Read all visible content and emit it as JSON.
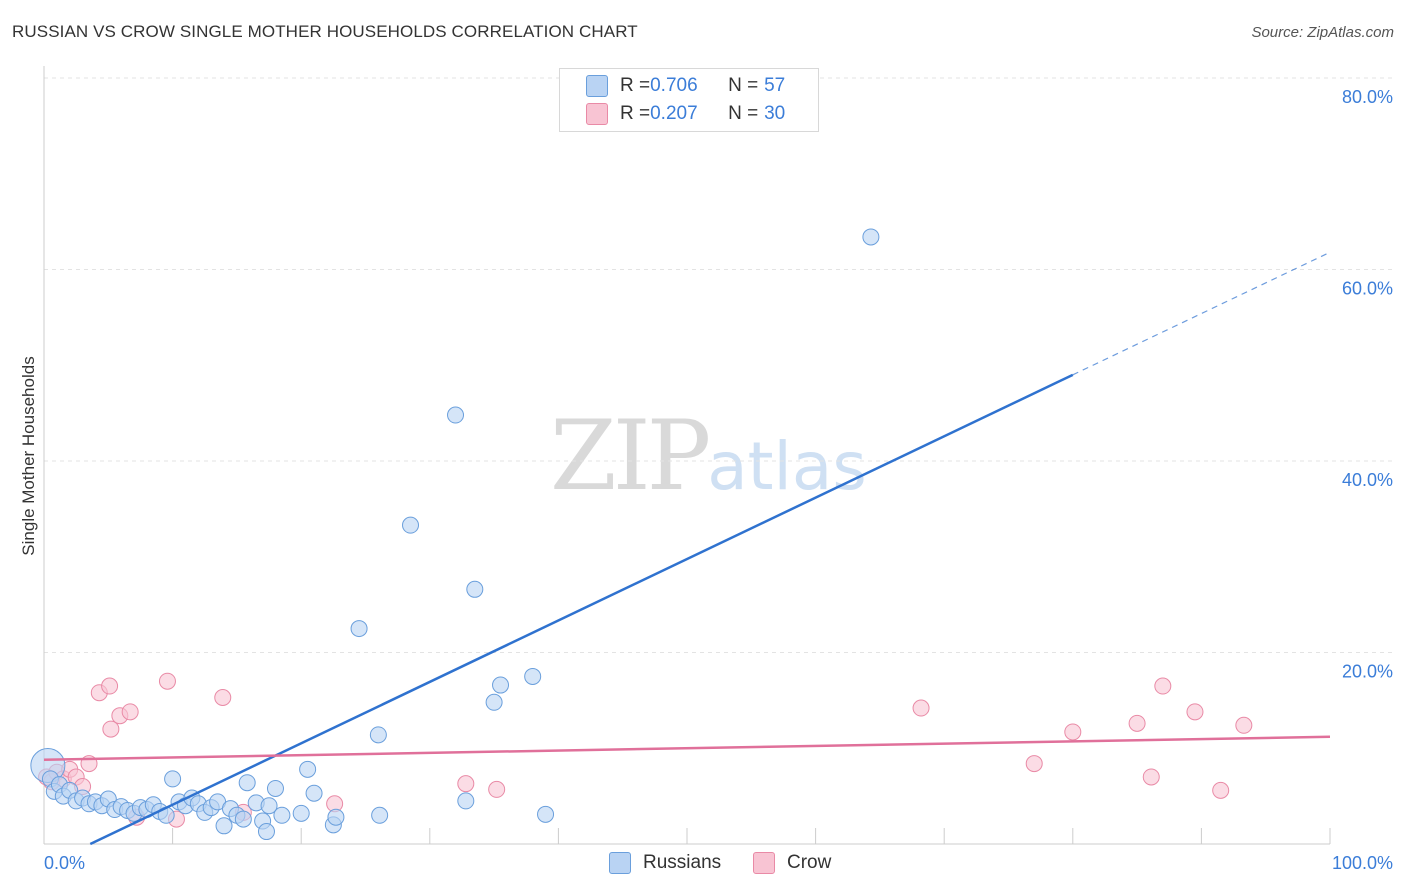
{
  "title": "RUSSIAN VS CROW SINGLE MOTHER HOUSEHOLDS CORRELATION CHART",
  "source": "Source: ZipAtlas.com",
  "watermark": {
    "zip": "ZIP",
    "atlas": "atlas"
  },
  "colors": {
    "russians_fill": "#b9d3f3",
    "russians_stroke": "#6a9fdc",
    "russians_line": "#2f72cf",
    "crow_fill": "#f8c4d3",
    "crow_stroke": "#e98aa6",
    "crow_line": "#e0709a",
    "axis_label": "#3b7dd8",
    "grid": "#e3e3e3"
  },
  "legend": {
    "russians": {
      "r_label": "R = ",
      "r_value": "0.706",
      "n_label": "N = ",
      "n_value": "57"
    },
    "crow": {
      "r_label": "R = ",
      "r_value": "0.207",
      "n_label": "N = ",
      "n_value": "30"
    }
  },
  "bottom_legend": {
    "russians": "Russians",
    "crow": "Crow"
  },
  "chart_data": {
    "type": "scatter",
    "title": "RUSSIAN VS CROW SINGLE MOTHER HOUSEHOLDS CORRELATION CHART",
    "xlabel": "",
    "ylabel": "Single Mother Households",
    "xlim": [
      0,
      100
    ],
    "ylim": [
      0,
      80
    ],
    "x_tick_labels": [
      "0.0%",
      "100.0%"
    ],
    "y_ticks": [
      20,
      40,
      60,
      80
    ],
    "y_tick_labels": [
      "20.0%",
      "40.0%",
      "60.0%",
      "80.0%"
    ],
    "grid": true,
    "series": [
      {
        "name": "Russians",
        "points": [
          [
            0.3,
            8.2,
            2
          ],
          [
            0.5,
            6.8,
            1
          ],
          [
            0.8,
            5.5,
            1
          ],
          [
            1.2,
            6.2,
            1
          ],
          [
            1.5,
            5.0,
            1
          ],
          [
            2.0,
            5.6,
            1
          ],
          [
            2.5,
            4.5,
            1
          ],
          [
            3.0,
            4.8,
            1
          ],
          [
            3.5,
            4.2,
            1
          ],
          [
            4.0,
            4.4,
            1
          ],
          [
            4.5,
            4.0,
            1
          ],
          [
            5.0,
            4.7,
            1
          ],
          [
            5.5,
            3.6,
            1
          ],
          [
            6.0,
            3.9,
            1
          ],
          [
            6.5,
            3.5,
            1
          ],
          [
            7.0,
            3.2,
            1
          ],
          [
            7.5,
            3.8,
            1
          ],
          [
            8.0,
            3.6,
            1
          ],
          [
            8.5,
            4.1,
            1
          ],
          [
            9.0,
            3.4,
            1
          ],
          [
            9.5,
            3.0,
            1
          ],
          [
            10.0,
            6.8,
            1
          ],
          [
            10.5,
            4.4,
            1
          ],
          [
            11.0,
            4.0,
            1
          ],
          [
            11.5,
            4.8,
            1
          ],
          [
            12.0,
            4.2,
            1
          ],
          [
            12.5,
            3.3,
            1
          ],
          [
            13.0,
            3.8,
            1
          ],
          [
            13.5,
            4.4,
            1
          ],
          [
            14.0,
            1.9,
            1
          ],
          [
            14.5,
            3.7,
            1
          ],
          [
            15.0,
            3.0,
            1
          ],
          [
            15.5,
            2.6,
            1
          ],
          [
            15.8,
            6.4,
            1
          ],
          [
            16.5,
            4.3,
            1
          ],
          [
            17.0,
            2.4,
            1
          ],
          [
            17.5,
            4.0,
            1
          ],
          [
            18.0,
            5.8,
            1
          ],
          [
            18.5,
            3.0,
            1
          ],
          [
            17.3,
            1.3,
            1
          ],
          [
            20.0,
            3.2,
            1
          ],
          [
            20.5,
            7.8,
            1
          ],
          [
            21.0,
            5.3,
            1
          ],
          [
            22.5,
            2.0,
            1
          ],
          [
            22.7,
            2.8,
            1
          ],
          [
            24.5,
            22.5,
            1
          ],
          [
            26.0,
            11.4,
            1
          ],
          [
            26.1,
            3.0,
            1
          ],
          [
            28.5,
            33.3,
            1
          ],
          [
            32.0,
            44.8,
            1
          ],
          [
            33.5,
            26.6,
            1
          ],
          [
            35.0,
            14.8,
            1
          ],
          [
            35.5,
            16.6,
            1
          ],
          [
            38.0,
            17.5,
            1
          ],
          [
            39.0,
            3.1,
            1
          ],
          [
            64.3,
            63.4,
            1
          ],
          [
            32.8,
            4.5,
            1
          ]
        ],
        "trendline": {
          "x": [
            3.6,
            80.0
          ],
          "y": [
            0.0,
            49.0
          ],
          "dashed_to": [
            100.0,
            61.8
          ]
        }
      },
      {
        "name": "Crow",
        "points": [
          [
            0.2,
            7.0,
            1
          ],
          [
            0.6,
            6.5,
            1
          ],
          [
            1.0,
            7.5,
            1
          ],
          [
            1.5,
            6.8,
            1
          ],
          [
            2.0,
            7.8,
            1
          ],
          [
            2.5,
            7.0,
            1
          ],
          [
            3.0,
            6.0,
            1
          ],
          [
            3.5,
            8.4,
            1
          ],
          [
            4.3,
            15.8,
            1
          ],
          [
            5.1,
            16.5,
            1
          ],
          [
            5.2,
            12.0,
            1
          ],
          [
            5.9,
            13.4,
            1
          ],
          [
            6.7,
            13.8,
            1
          ],
          [
            7.2,
            2.8,
            1
          ],
          [
            9.6,
            17.0,
            1
          ],
          [
            10.3,
            2.6,
            1
          ],
          [
            13.9,
            15.3,
            1
          ],
          [
            15.5,
            3.3,
            1
          ],
          [
            22.6,
            4.2,
            1
          ],
          [
            32.8,
            6.3,
            1
          ],
          [
            35.2,
            5.7,
            1
          ],
          [
            68.2,
            14.2,
            1
          ],
          [
            77.0,
            8.4,
            1
          ],
          [
            80.0,
            11.7,
            1
          ],
          [
            85.0,
            12.6,
            1
          ],
          [
            86.1,
            7.0,
            1
          ],
          [
            87.0,
            16.5,
            1
          ],
          [
            89.5,
            13.8,
            1
          ],
          [
            91.5,
            5.6,
            1
          ],
          [
            93.3,
            12.4,
            1
          ]
        ],
        "trendline": {
          "x": [
            0.0,
            100.0
          ],
          "y": [
            8.8,
            11.2
          ]
        }
      }
    ]
  }
}
